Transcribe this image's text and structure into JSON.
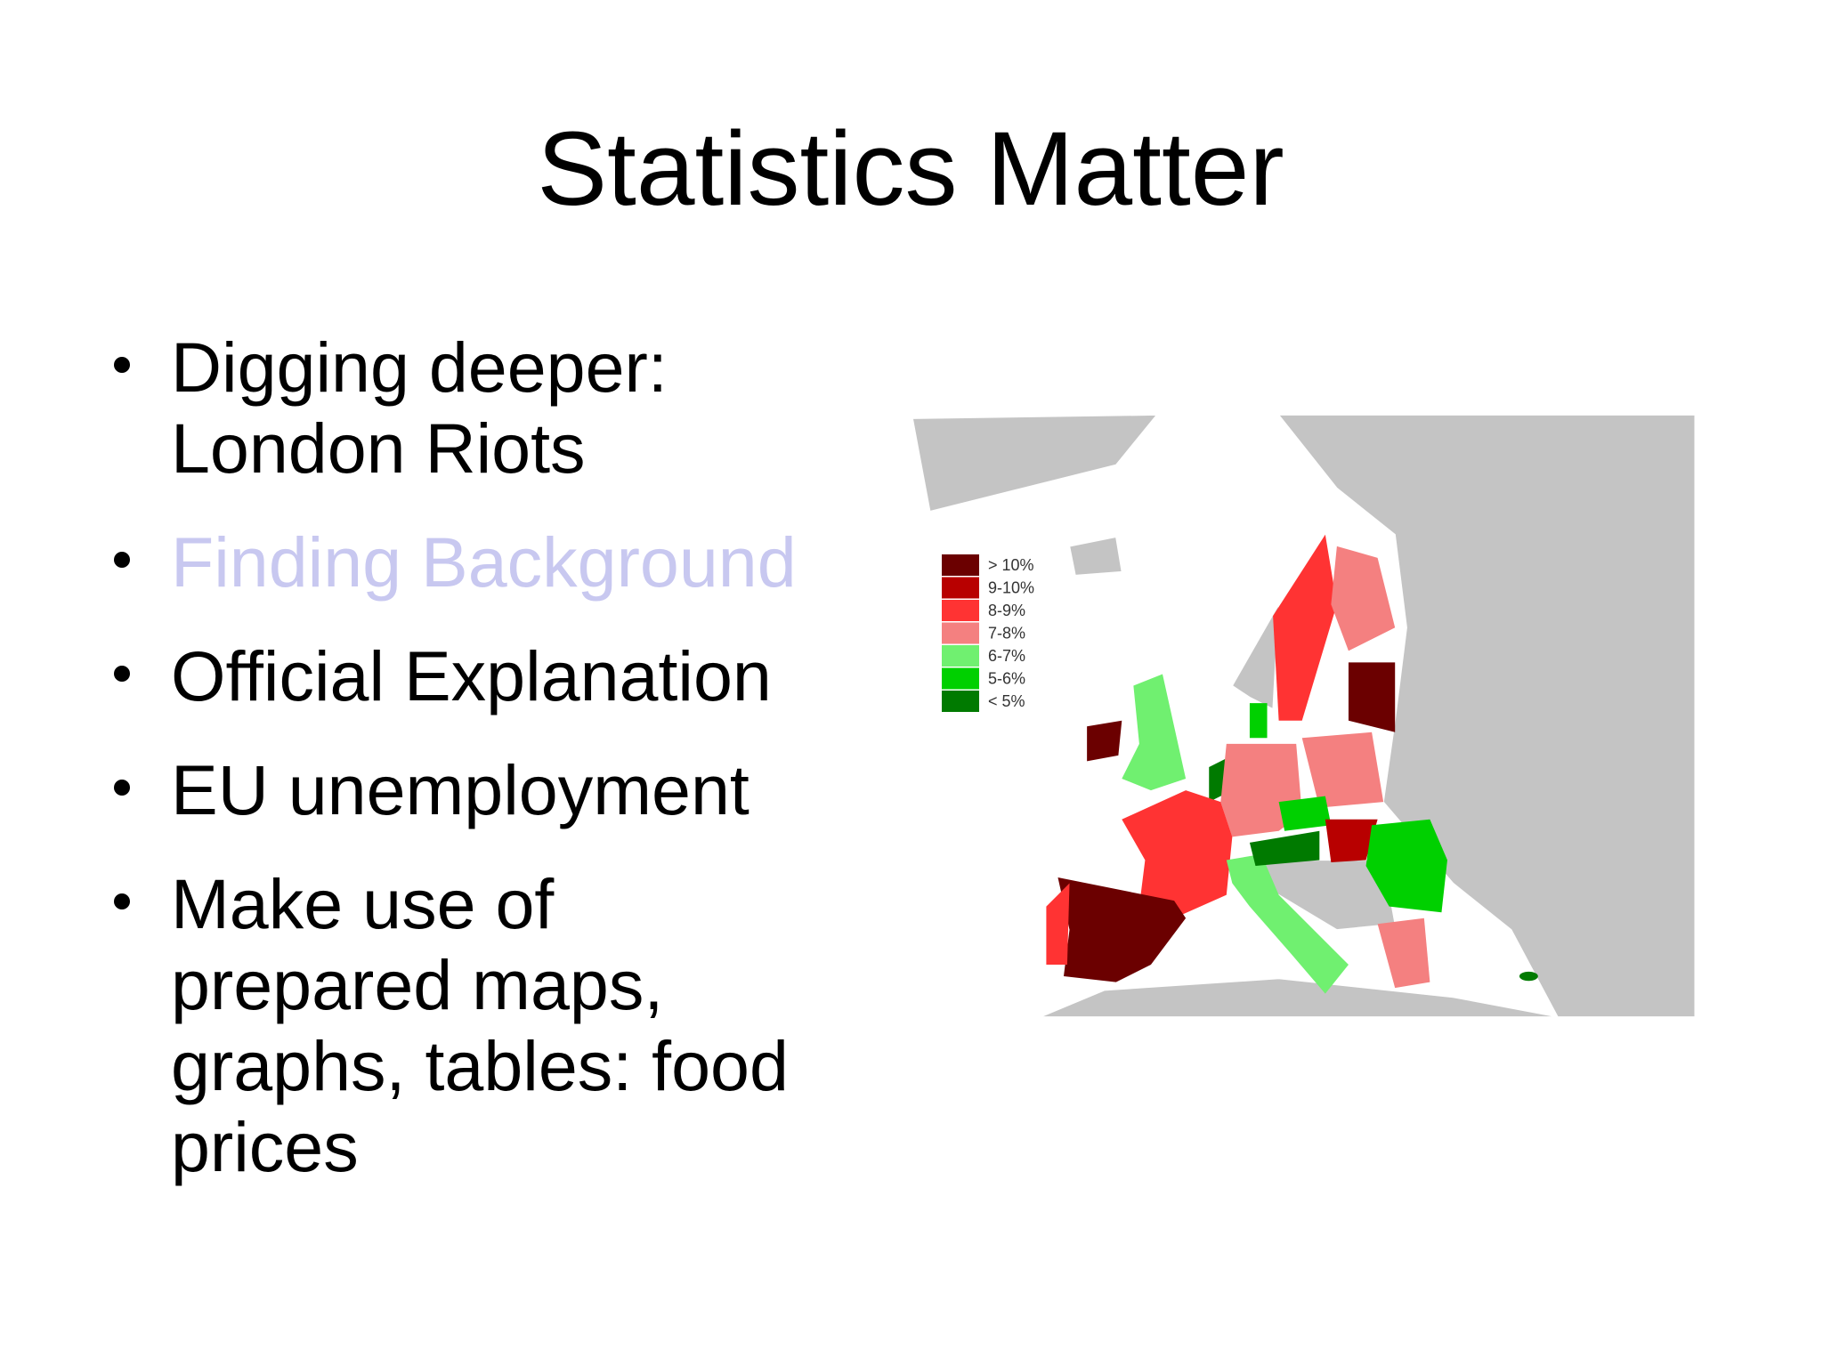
{
  "slide": {
    "title": "Statistics Matter",
    "bullets": [
      {
        "lines": [
          "Digging deeper:",
          "London Riots"
        ]
      },
      {
        "lines": [
          "Finding Background"
        ]
      },
      {
        "lines": [
          "Official Explanation"
        ]
      },
      {
        "lines": [
          "EU unemployment"
        ]
      },
      {
        "lines": [
          "Make use of",
          "prepared maps,",
          "graphs, tables: food",
          "prices"
        ]
      }
    ],
    "map_legend": [
      {
        "label": "> 10%",
        "color": "#6b0000"
      },
      {
        "label": "9-10%",
        "color": "#b80000"
      },
      {
        "label": "8-9%",
        "color": "#ff3333"
      },
      {
        "label": "7-8%",
        "color": "#f48080"
      },
      {
        "label": "6-7%",
        "color": "#70f070"
      },
      {
        "label": "5-6%",
        "color": "#00d000"
      },
      {
        "label": "< 5%",
        "color": "#007a00"
      }
    ]
  }
}
